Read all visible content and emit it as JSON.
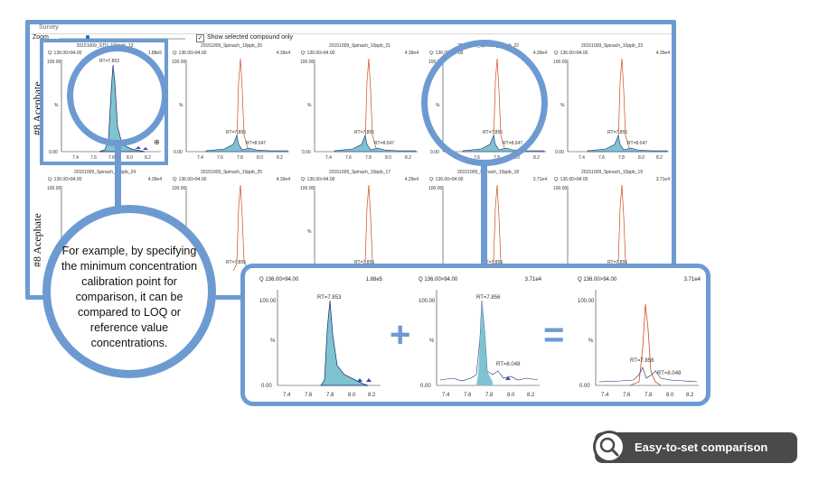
{
  "window": {
    "title": "Survey",
    "zoom_label": "Zoom",
    "show_selected_label": "Show selected compound only",
    "show_selected_checked": true,
    "zoom_level": 0.2
  },
  "rows": [
    {
      "label": "#8 Acephate"
    },
    {
      "label": "#8 Acephate"
    }
  ],
  "panels_row1": [
    {
      "title": "20151009_STD_100ppb_13",
      "q": "Q: 136.00>94.00",
      "intensity": "1.88e5",
      "rt1": "RT=7.853"
    },
    {
      "title": "20151009_Spinach_10ppb_20",
      "q": "Q: 136.00>94.00",
      "intensity": "4.39e4",
      "rt1": "RT=7.855",
      "rt2": "RT=8.047"
    },
    {
      "title": "20151009_Spinach_10ppb_21",
      "q": "Q: 136.00>94.00",
      "intensity": "4.39e4",
      "rt1": "RT=7.855",
      "rt2": "RT=8.047"
    },
    {
      "title": "20151009_Spinach_10ppb_22",
      "q": "Q: 136.00>94.00",
      "intensity": "4.39e4",
      "rt1": "RT=7.856",
      "rt2": "RT=8.047"
    },
    {
      "title": "20151009_Spinach_10ppb_23",
      "q": "Q: 136.00>94.00",
      "intensity": "4.39e4",
      "rt1": "RT=7.855",
      "rt2": "RT=8.047"
    }
  ],
  "panels_row2": [
    {
      "title": "20151009_Spinach_10ppb_24",
      "q": "Q: 136.00>94.00",
      "intensity": "4.39e4"
    },
    {
      "title": "20151009_Spinach_10ppb_25",
      "q": "Q: 136.00>94.00",
      "intensity": "4.39e4",
      "rt1": "RT=7.855"
    },
    {
      "title": "20151009_Spinach_10ppb_17",
      "q": "Q: 136.00>94.00",
      "intensity": "4.29e4",
      "rt1": "RT=7.855"
    },
    {
      "title": "20151009_Spinach_10ppb_18",
      "q": "Q: 136.00>94.00",
      "intensity": "3.71e4",
      "rt1": "RT=7.856"
    },
    {
      "title": "20151009_Spinach_10ppb_19",
      "q": "Q: 136.00>94.00",
      "intensity": "3.71e4",
      "rt1": "RT=7.856"
    }
  ],
  "axis": {
    "y_top": "100.00",
    "y_mid": "%",
    "y_bottom": "0.00",
    "x_ticks": [
      "7.4",
      "7.6",
      "7.8",
      "8.0",
      "8.2"
    ]
  },
  "callout": {
    "text": "For example, by specifying the minimum concentration calibration point for comparison, it can be compared to LOQ or reference value concentrations."
  },
  "comparison": {
    "plus": "+",
    "equals": "=",
    "panels": [
      {
        "q": "Q 136.00>94.00",
        "intensity": "1.88e5",
        "rt1": "RT=7.853"
      },
      {
        "q": "Q 136.00>94.00",
        "intensity": "3.71e4",
        "rt1": "RT=7.856",
        "rt2": "RT=8.048"
      },
      {
        "q": "Q 136.00>94.00",
        "intensity": "3.71e4",
        "rt1": "RT=7.856",
        "rt2": "RT=8.048"
      }
    ]
  },
  "badge": {
    "label": "Easy-to-set comparison",
    "icon": "magnifier-icon"
  },
  "colors": {
    "accent": "#6d9bd1",
    "peak_fill": "#7fc3d1",
    "peak_line": "#1a2a6e",
    "overlay_line": "#d04a1c",
    "badge_bg": "#4a4a4a"
  }
}
